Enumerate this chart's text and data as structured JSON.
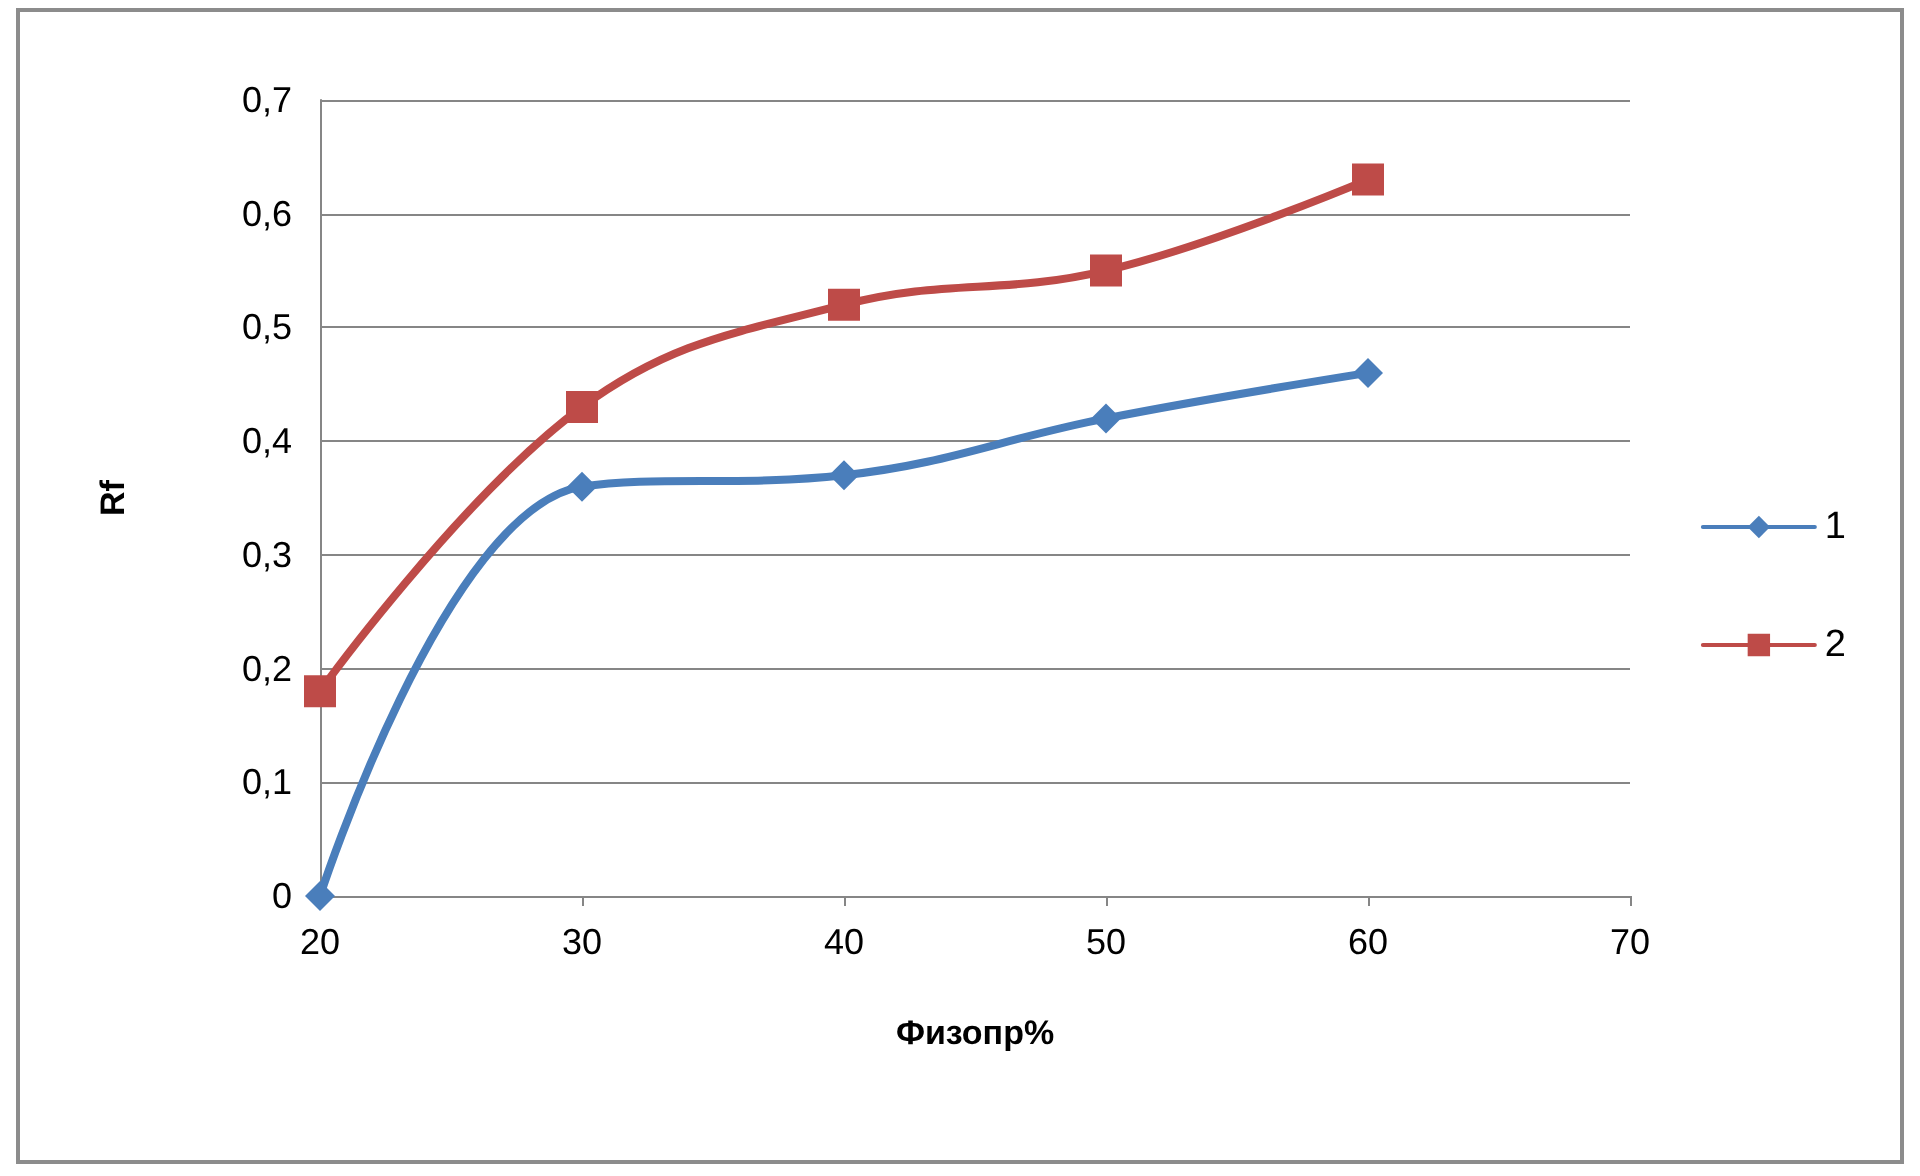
{
  "chart_data": {
    "type": "line",
    "xlabel": "Физопр%",
    "ylabel": "Rf",
    "x": [
      20,
      30,
      40,
      50,
      60
    ],
    "series": [
      {
        "name": "1",
        "color": "#4a7ebb",
        "marker": "diamond",
        "values": [
          0,
          0.36,
          0.37,
          0.42,
          0.46
        ]
      },
      {
        "name": "2",
        "color": "#be4b48",
        "marker": "square",
        "values": [
          0.18,
          0.43,
          0.52,
          0.55,
          0.63
        ]
      }
    ],
    "xlim": [
      20,
      70
    ],
    "xticks": [
      20,
      30,
      40,
      50,
      60,
      70
    ],
    "ylim": [
      0,
      0.7
    ],
    "yticks": [
      0,
      {
        "value": 0.1,
        "label": "0,1"
      },
      {
        "value": 0.2,
        "label": "0,2"
      },
      {
        "value": 0.3,
        "label": "0,3"
      },
      {
        "value": 0.4,
        "label": "0,4"
      },
      {
        "value": 0.5,
        "label": "0,5"
      },
      {
        "value": 0.6,
        "label": "0,6"
      },
      {
        "value": 0.7,
        "label": "0,7"
      }
    ],
    "grid": "y",
    "legend": "right",
    "line_style": "solid"
  }
}
